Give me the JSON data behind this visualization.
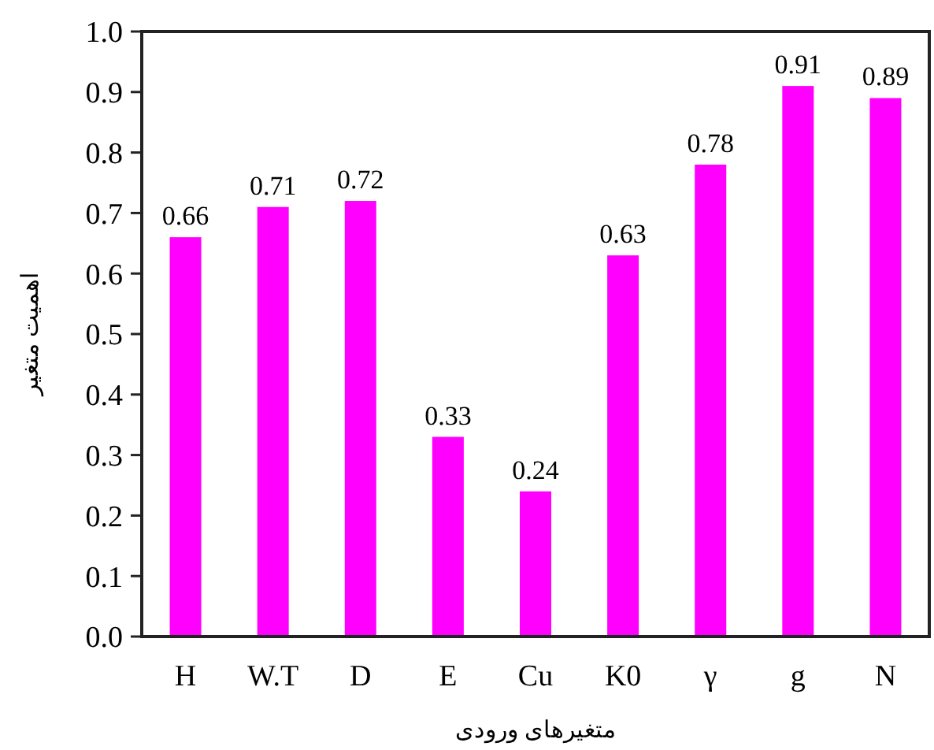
{
  "chart_data": {
    "type": "bar",
    "xlabel": "متغیرهای ورودی",
    "ylabel": "اهمیت متغیر",
    "categories": [
      "H",
      "W.T",
      "D",
      "E",
      "Cu",
      "K0",
      "γ",
      "g",
      "N"
    ],
    "values": [
      0.66,
      0.71,
      0.72,
      0.33,
      0.24,
      0.63,
      0.78,
      0.91,
      0.89
    ],
    "color": "#ff00ff",
    "data_labels": true,
    "ylim": [
      0,
      1
    ],
    "yticks": [
      {
        "value": 0,
        "label": "0.0"
      },
      {
        "value": 0.1,
        "label": "0.1"
      },
      {
        "value": 0.2,
        "label": "0.2"
      },
      {
        "value": 0.3,
        "label": "0.3"
      },
      {
        "value": 0.4,
        "label": "0.4"
      },
      {
        "value": 0.5,
        "label": "0.5"
      },
      {
        "value": 0.6,
        "label": "0.6"
      },
      {
        "value": 0.7,
        "label": "0.7"
      },
      {
        "value": 0.8,
        "label": "0.8"
      },
      {
        "value": 0.9,
        "label": "0.9"
      },
      {
        "value": 1,
        "label": "1.0"
      }
    ]
  }
}
